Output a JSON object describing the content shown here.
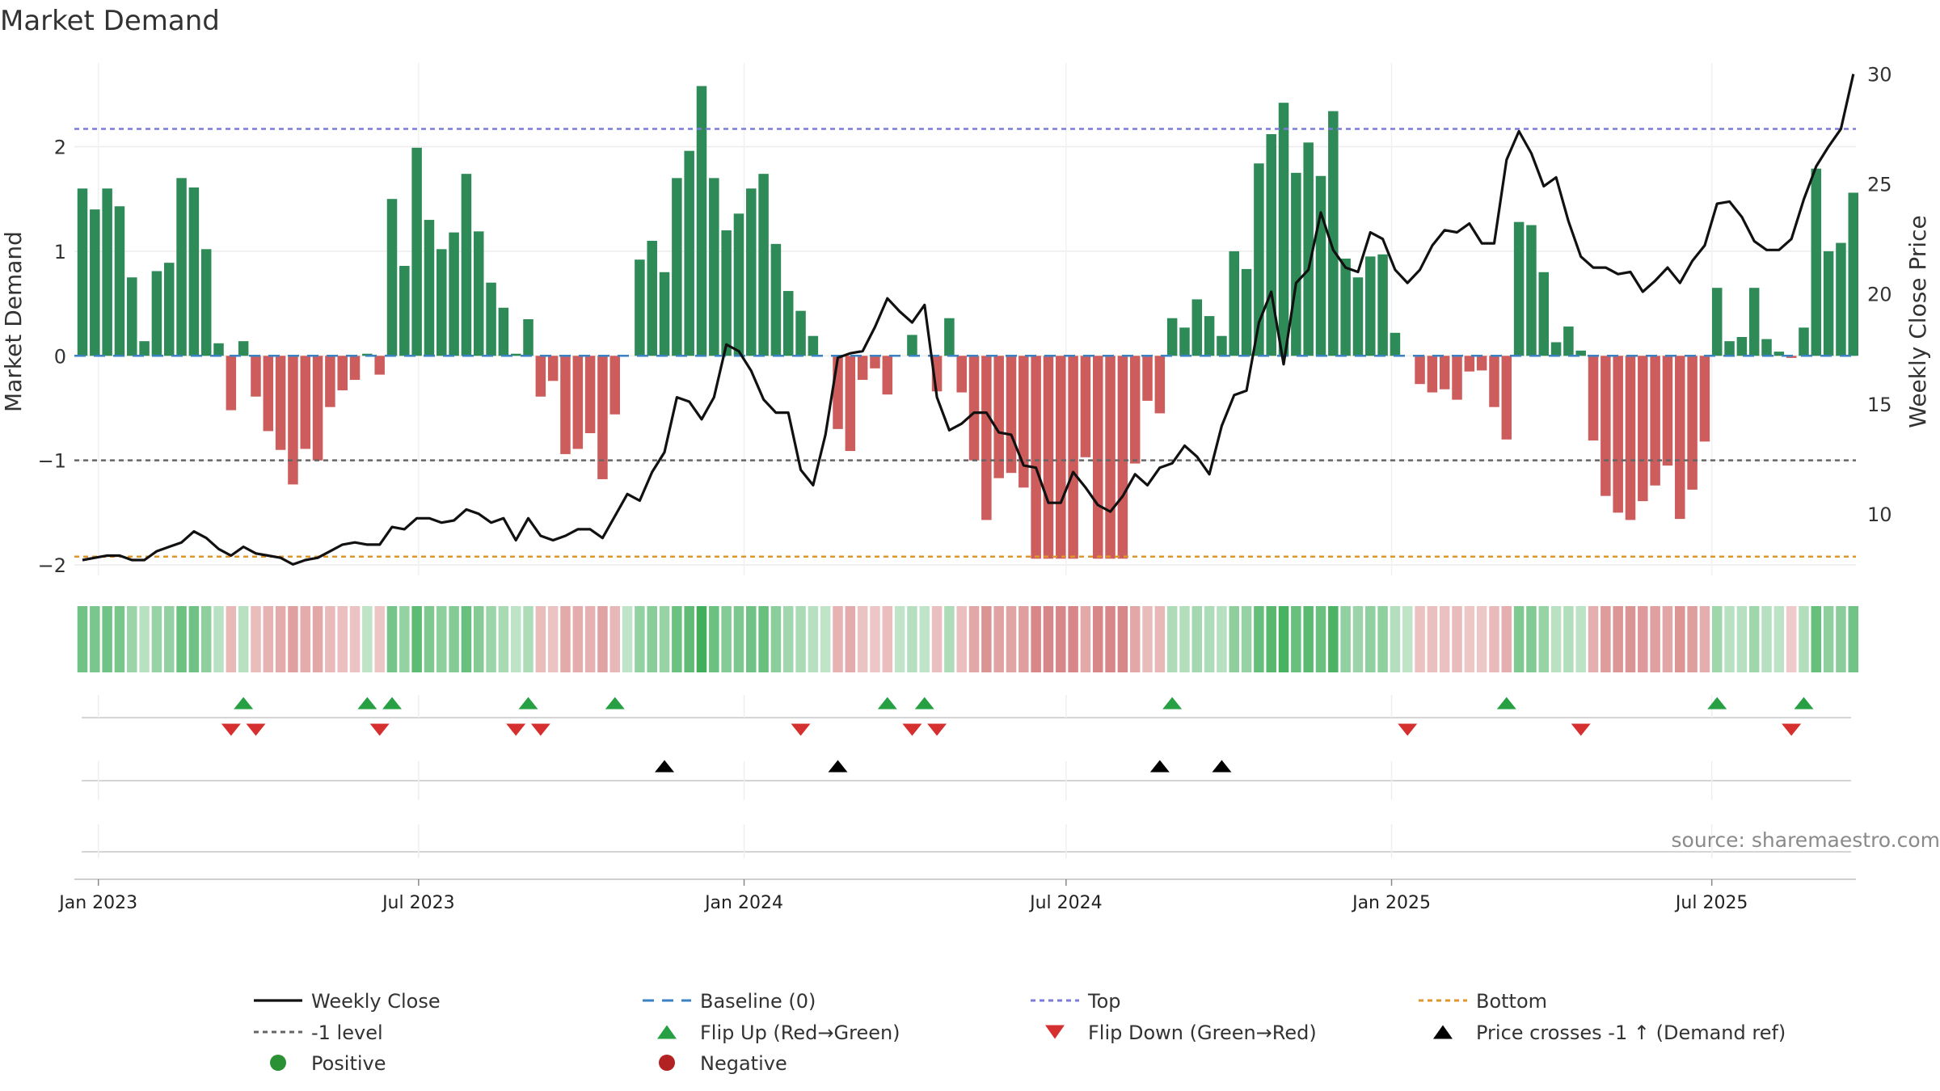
{
  "chart_data": {
    "type": "bar+line",
    "title": "Market Demand",
    "ylabel_left": "Market Demand",
    "ylabel_right": "Weekly Close Price",
    "source": "source: sharemaestro.com",
    "y_left": {
      "lim": [
        -2.1,
        2.8
      ],
      "ticks": [
        -2,
        -1,
        0,
        1,
        2
      ]
    },
    "y_right": {
      "lim": [
        7.2,
        30.5
      ],
      "ticks": [
        10,
        15,
        20,
        25,
        30
      ]
    },
    "x": {
      "start": "2022-12-23",
      "step_days": 7,
      "n_weeks": 144
    },
    "x_ticks": [
      {
        "label": "Jan 2023",
        "date": "2023-01-01"
      },
      {
        "label": "Jul 2023",
        "date": "2023-07-01"
      },
      {
        "label": "Jan 2024",
        "date": "2024-01-01"
      },
      {
        "label": "Jul 2024",
        "date": "2024-07-01"
      },
      {
        "label": "Jan 2025",
        "date": "2025-01-01"
      },
      {
        "label": "Jul 2025",
        "date": "2025-07-01"
      }
    ],
    "reference_lines": [
      {
        "name": "Top",
        "value": 2.17,
        "color": "#7b7bdb"
      },
      {
        "name": "-1 level",
        "value": -1,
        "color": "#666666"
      },
      {
        "name": "Bottom",
        "value": -1.92,
        "color": "#e0962a"
      },
      {
        "name": "Baseline (0)",
        "value": 0,
        "color": "#3b82c4"
      }
    ],
    "colors": {
      "positive": "#2e8b57",
      "negative": "#cd5c5c",
      "price": "#111111",
      "flip_up": "#27a044",
      "flip_down": "#d62f2f",
      "cross": "#000000",
      "legend_positive": "#2a9134",
      "legend_negative": "#b22222"
    },
    "demand": [
      1.6,
      1.4,
      1.6,
      1.43,
      0.75,
      0.14,
      0.81,
      0.89,
      1.7,
      1.61,
      1.02,
      0.12,
      -0.52,
      0.14,
      -0.39,
      -0.72,
      -0.9,
      -1.23,
      -0.89,
      -1.0,
      -0.49,
      -0.33,
      -0.23,
      0.02,
      -0.18,
      1.5,
      0.86,
      1.99,
      1.3,
      1.02,
      1.18,
      1.74,
      1.19,
      0.7,
      0.46,
      0.02,
      0.35,
      -0.39,
      -0.24,
      -0.94,
      -0.89,
      -0.74,
      -1.18,
      -0.56,
      0.0,
      0.92,
      1.1,
      0.8,
      1.7,
      1.96,
      2.58,
      1.7,
      1.2,
      1.36,
      1.6,
      1.74,
      1.07,
      0.62,
      0.43,
      0.19,
      0.0,
      -0.7,
      -0.91,
      -0.23,
      -0.12,
      -0.37,
      0.0,
      0.2,
      0.0,
      -0.34,
      0.36,
      -0.35,
      -1.0,
      -1.57,
      -1.17,
      -1.12,
      -1.26,
      -1.94,
      -1.94,
      -1.94,
      -1.94,
      -0.97,
      -1.94,
      -1.94,
      -1.94,
      -1.03,
      -0.43,
      -0.55,
      0.36,
      0.27,
      0.54,
      0.38,
      0.19,
      1.0,
      0.83,
      1.84,
      2.12,
      2.42,
      1.75,
      2.04,
      1.72,
      2.34,
      0.93,
      0.75,
      0.95,
      0.97,
      0.22,
      0.0,
      -0.27,
      -0.35,
      -0.32,
      -0.42,
      -0.15,
      -0.14,
      -0.49,
      -0.8,
      1.28,
      1.25,
      0.8,
      0.13,
      0.28,
      0.05,
      -0.81,
      -1.34,
      -1.5,
      -1.57,
      -1.39,
      -1.24,
      -1.05,
      -1.56,
      -1.28,
      -0.82,
      0.65,
      0.14,
      0.18,
      0.65,
      0.16,
      0.04,
      -0.02,
      0.27,
      1.79,
      1.0,
      1.08,
      1.56
    ],
    "price": [
      7.9,
      8.0,
      8.1,
      8.1,
      7.9,
      7.9,
      8.3,
      8.5,
      8.7,
      9.2,
      8.9,
      8.4,
      8.1,
      8.5,
      8.2,
      8.1,
      8.0,
      7.7,
      7.9,
      8.0,
      8.3,
      8.6,
      8.7,
      8.6,
      8.6,
      9.4,
      9.3,
      9.8,
      9.8,
      9.6,
      9.7,
      10.2,
      10.0,
      9.6,
      9.8,
      8.8,
      9.8,
      9.0,
      8.8,
      9.0,
      9.3,
      9.3,
      8.9,
      9.9,
      10.9,
      10.6,
      11.9,
      12.8,
      15.3,
      15.1,
      14.3,
      15.3,
      17.7,
      17.4,
      16.5,
      15.2,
      14.6,
      14.6,
      12.0,
      11.3,
      13.6,
      17.1,
      17.3,
      17.4,
      18.5,
      19.8,
      19.2,
      18.7,
      19.5,
      15.3,
      13.8,
      14.1,
      14.6,
      14.6,
      13.7,
      13.6,
      12.2,
      12.1,
      10.5,
      10.5,
      11.9,
      11.2,
      10.4,
      10.1,
      10.8,
      11.8,
      11.3,
      12.1,
      12.3,
      13.1,
      12.6,
      11.8,
      14.0,
      15.4,
      15.6,
      18.7,
      20.1,
      16.8,
      20.5,
      21.1,
      23.7,
      22.0,
      21.2,
      21.0,
      22.8,
      22.5,
      21.1,
      20.5,
      21.1,
      22.2,
      22.9,
      22.8,
      23.2,
      22.3,
      22.3,
      26.1,
      27.4,
      26.4,
      24.9,
      25.3,
      23.3,
      21.7,
      21.2,
      21.2,
      20.9,
      21.0,
      20.1,
      20.6,
      21.2,
      20.5,
      21.5,
      22.2,
      24.1,
      24.2,
      23.5,
      22.4,
      22.0,
      22.0,
      22.5,
      24.3,
      25.8,
      26.7,
      27.5,
      30.0
    ],
    "flip_up_weeks": [
      13,
      23,
      25,
      36,
      43,
      65,
      68,
      88,
      115,
      132,
      139
    ],
    "flip_down_weeks": [
      12,
      14,
      24,
      35,
      37,
      58,
      67,
      69,
      107,
      121,
      138
    ],
    "price_cross_weeks": [
      47,
      61,
      87,
      92
    ],
    "legend": [
      "Weekly Close",
      "Baseline (0)",
      "Top",
      "Bottom",
      "-1 level",
      "Flip Up (Red→Green)",
      "Flip Down (Green→Red)",
      "Price crosses -1 ↑ (Demand ref)",
      "Positive",
      "Negative"
    ]
  }
}
